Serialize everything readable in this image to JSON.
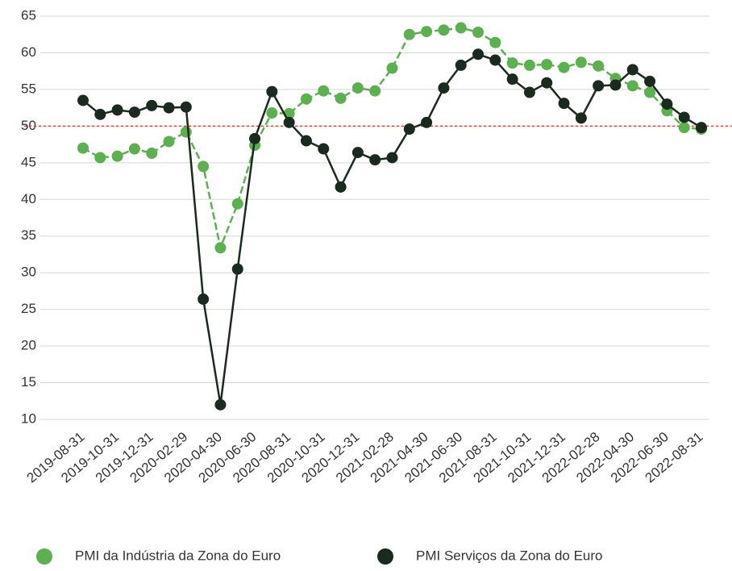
{
  "chart_data": {
    "type": "line",
    "categories": [
      "2019-08-31",
      null,
      "2019-10-31",
      null,
      "2019-12-31",
      null,
      "2020-02-29",
      null,
      "2020-04-30",
      null,
      "2020-06-30",
      null,
      "2020-08-31",
      null,
      "2020-10-31",
      null,
      "2020-12-31",
      null,
      "2021-02-28",
      null,
      "2021-04-30",
      null,
      "2021-06-30",
      null,
      "2021-08-31",
      null,
      "2021-10-31",
      null,
      "2021-12-31",
      null,
      "2022-02-28",
      null,
      "2022-04-30",
      null,
      "2022-06-30",
      null,
      "2022-08-31"
    ],
    "series": [
      {
        "name": "PMI da Indústria da Zona do Euro",
        "color": "#5cb04f",
        "values": [
          47.0,
          45.7,
          45.9,
          46.9,
          46.3,
          47.9,
          49.2,
          44.5,
          33.4,
          39.4,
          47.4,
          51.8,
          51.7,
          53.7,
          54.8,
          53.8,
          55.2,
          54.8,
          57.9,
          62.5,
          62.9,
          63.1,
          63.4,
          62.8,
          61.4,
          58.6,
          58.3,
          58.4,
          58.0,
          58.7,
          58.2,
          56.5,
          55.5,
          54.6,
          52.1,
          49.8,
          49.6
        ]
      },
      {
        "name": "PMI Serviços da Zona do Euro",
        "color": "#1a2a1e",
        "values": [
          53.5,
          51.6,
          52.2,
          51.9,
          52.8,
          52.5,
          52.6,
          26.4,
          12.0,
          30.5,
          48.3,
          54.7,
          50.5,
          48.0,
          46.9,
          41.7,
          46.4,
          45.4,
          45.7,
          49.6,
          50.5,
          55.2,
          58.3,
          59.8,
          59.0,
          56.4,
          54.6,
          55.9,
          53.1,
          51.1,
          55.5,
          55.6,
          57.7,
          56.1,
          53.0,
          51.2,
          49.8
        ]
      }
    ],
    "ylim": [
      10,
      65
    ],
    "yticks": [
      10,
      15,
      20,
      25,
      30,
      35,
      40,
      45,
      50,
      55,
      60,
      65
    ],
    "grid": true,
    "reference_line": {
      "value": 50,
      "color": "#d9443a"
    }
  }
}
